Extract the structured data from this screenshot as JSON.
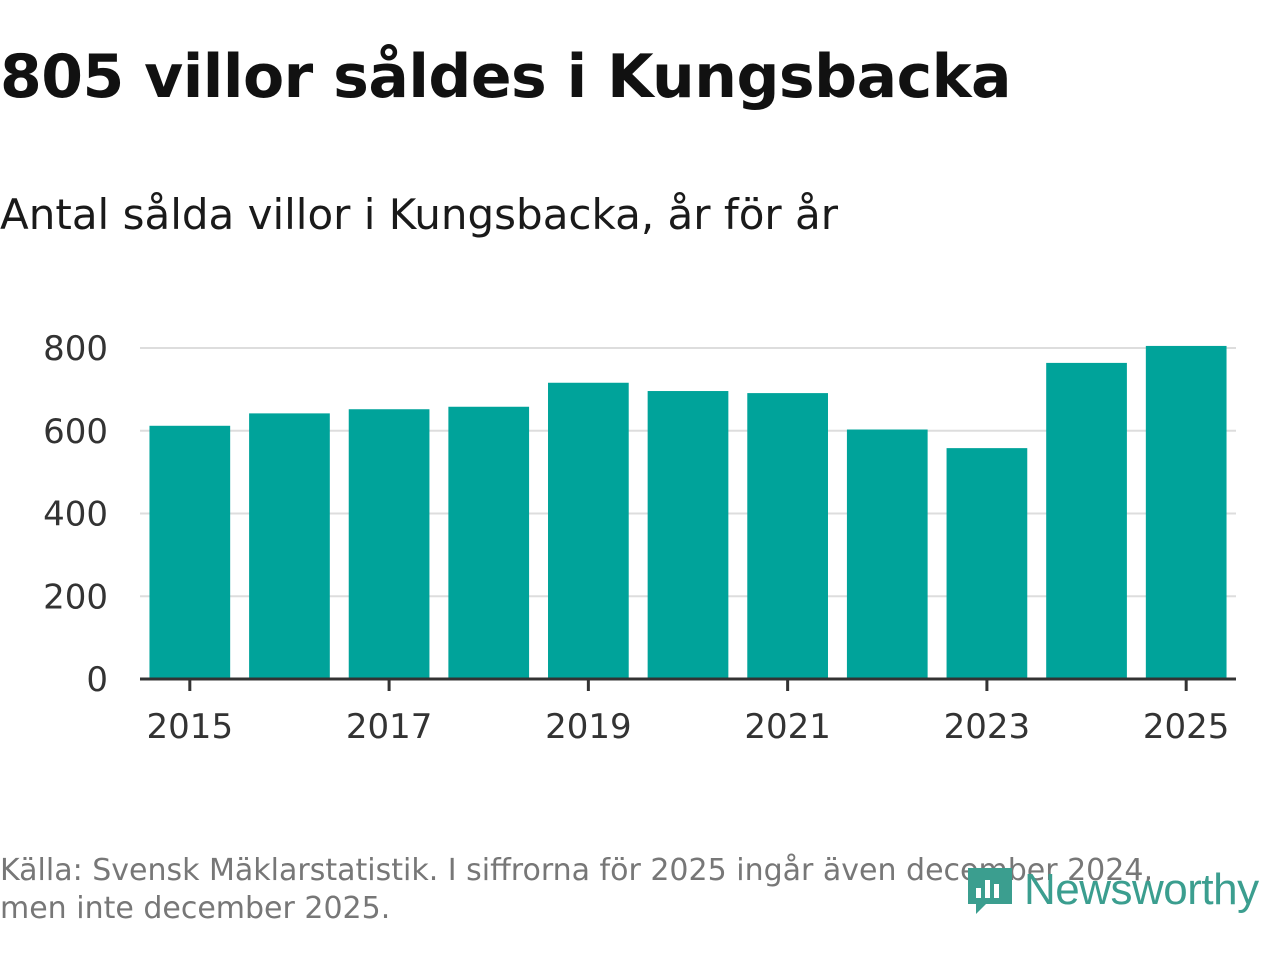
{
  "title": "805 villor såldes i Kungsbacka",
  "subtitle": "Antal sålda villor i Kungsbacka, år för år",
  "footer": {
    "line1": "Källa: Svensk Mäklarstatistik. I siffrorna för 2025 ingår även december 2024,",
    "line2": "men inte december 2025."
  },
  "logo": {
    "text": "Newsworthy",
    "icon": "newsworthy-logo-icon"
  },
  "colors": {
    "bar": "#00a39a",
    "grid": "#dddddd",
    "axis": "#333333",
    "logo": "#3b9e8f"
  },
  "chart_data": {
    "type": "bar",
    "title": "Antal sålda villor i Kungsbacka, år för år",
    "xlabel": "",
    "ylabel": "",
    "categories": [
      "2015",
      "2016",
      "2017",
      "2018",
      "2019",
      "2020",
      "2021",
      "2022",
      "2023",
      "2024",
      "2025"
    ],
    "values": [
      612,
      642,
      652,
      658,
      716,
      696,
      691,
      603,
      558,
      764,
      805
    ],
    "x_tick_labels": [
      "2015",
      "2017",
      "2019",
      "2021",
      "2023",
      "2025"
    ],
    "y_ticks": [
      0,
      200,
      400,
      600,
      800
    ],
    "ylim": [
      0,
      800
    ],
    "grid": "horizontal"
  }
}
